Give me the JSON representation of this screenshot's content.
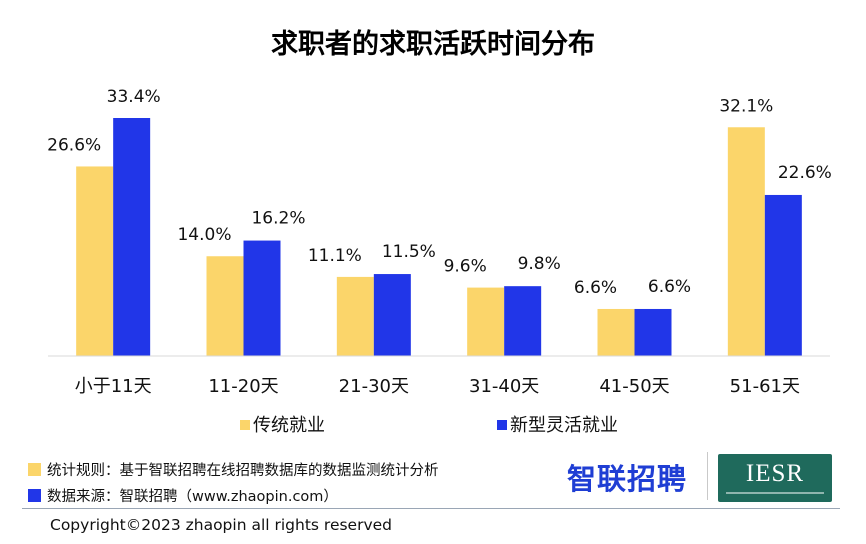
{
  "chart_data": {
    "type": "bar",
    "title": "求职者的求职活跃时间分布",
    "categories": [
      "小于11天",
      "11-20天",
      "21-30天",
      "31-40天",
      "41-50天",
      "51-61天"
    ],
    "series": [
      {
        "name": "传统就业",
        "values": [
          26.6,
          14.0,
          11.1,
          9.6,
          6.6,
          32.1
        ],
        "color": "#FBD56A",
        "labels": [
          "26.6%",
          "14.0%",
          "11.1%",
          "9.6%",
          "6.6%",
          "32.1%"
        ]
      },
      {
        "name": "新型灵活就业",
        "values": [
          33.4,
          16.2,
          11.5,
          9.8,
          6.6,
          22.6
        ],
        "color": "#2136E8",
        "labels": [
          "33.4%",
          "16.2%",
          "11.5%",
          "9.8%",
          "6.6%",
          "22.6%"
        ]
      }
    ],
    "ylim": [
      0,
      34
    ],
    "grid": false,
    "legend": "bottom",
    "value_unit": "%"
  },
  "footer": {
    "rule_label": "统计规则：基于智联招聘在线招聘数据库的数据监测统计分析",
    "source_label": "数据来源：智联招聘（www.zhaopin.com）",
    "rule_color": "#FBD56A",
    "source_color": "#2136E8",
    "copyright": "Copyright©2023 zhaopin all rights reserved"
  },
  "logos": {
    "zhaopin": "智联招聘",
    "iesr": "IESR"
  }
}
